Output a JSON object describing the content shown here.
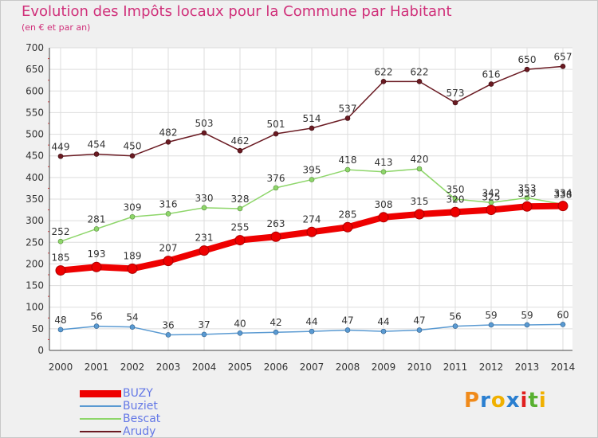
{
  "header": {
    "title": "Evolution des Impôts locaux pour la Commune par Habitant",
    "subtitle": "(en € et par an)"
  },
  "logo": {
    "text": "Proxiti",
    "colors": [
      "#f08a1a",
      "#2a7fd0",
      "#f0b000",
      "#2a7fd0",
      "#e02020",
      "#58b030",
      "#f0b000"
    ]
  },
  "chart_data": {
    "type": "line",
    "title": "Evolution des Impôts locaux pour la Commune par Habitant",
    "subtitle": "(en € et par an)",
    "xlabel": "",
    "ylabel": "",
    "ylim": [
      0,
      700
    ],
    "yticks": [
      0,
      50,
      100,
      150,
      200,
      250,
      300,
      350,
      400,
      450,
      500,
      550,
      600,
      650,
      700
    ],
    "grid": true,
    "legend_position": "bottom-left",
    "categories": [
      "2000",
      "2001",
      "2002",
      "2003",
      "2004",
      "2005",
      "2006",
      "2007",
      "2008",
      "2009",
      "2010",
      "2011",
      "2012",
      "2013",
      "2014"
    ],
    "series": [
      {
        "name": "Arudy",
        "color": "#6a1a22",
        "values": [
          449,
          454,
          450,
          482,
          503,
          462,
          501,
          514,
          537,
          622,
          622,
          573,
          616,
          650,
          657
        ]
      },
      {
        "name": "Bescat",
        "color": "#8ed66a",
        "values": [
          252,
          281,
          309,
          316,
          330,
          328,
          376,
          395,
          418,
          413,
          420,
          350,
          342,
          353,
          338
        ]
      },
      {
        "name": "Buziet",
        "color": "#5a9ad2",
        "values": [
          48,
          56,
          54,
          36,
          37,
          40,
          42,
          44,
          47,
          44,
          47,
          56,
          59,
          59,
          60
        ]
      },
      {
        "name": "BUZY",
        "color": "#ee0000",
        "values": [
          185,
          193,
          189,
          207,
          231,
          255,
          263,
          274,
          285,
          308,
          315,
          320,
          325,
          333,
          334
        ]
      }
    ],
    "legend": [
      "BUZY",
      "Buziet",
      "Bescat",
      "Arudy"
    ]
  }
}
